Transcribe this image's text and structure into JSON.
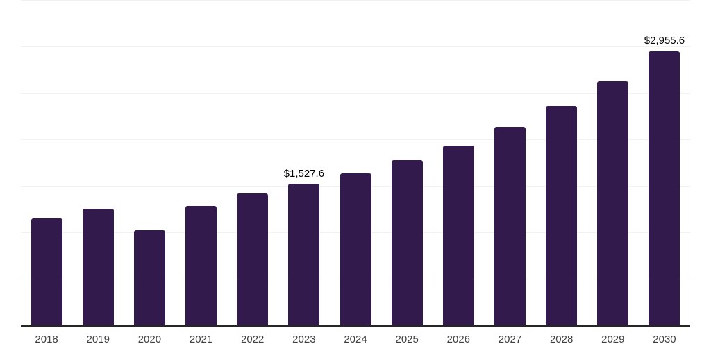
{
  "page": {
    "background": "#ffffff"
  },
  "chart_data": {
    "type": "bar",
    "title": "",
    "xlabel": "",
    "ylabel": "",
    "categories": [
      "2018",
      "2019",
      "2020",
      "2021",
      "2022",
      "2023",
      "2024",
      "2025",
      "2026",
      "2027",
      "2028",
      "2029",
      "2030"
    ],
    "values": [
      1157,
      1263,
      1032,
      1293,
      1425,
      1527.6,
      1644,
      1784,
      1942,
      2140,
      2368,
      2632,
      2955.6
    ],
    "bar_labels": {
      "2023": "$1,527.6",
      "2030": "$2,955.6"
    },
    "ylim": [
      0,
      3500
    ],
    "grid_step": 500,
    "grid": true,
    "y_tick_labels_shown": false,
    "legend": "none",
    "colors": {
      "bar": "#321a4d",
      "axis_line": "#262626",
      "gridline": "#f2f2f2",
      "tick_label": "#404040",
      "data_label": "#000000"
    }
  }
}
